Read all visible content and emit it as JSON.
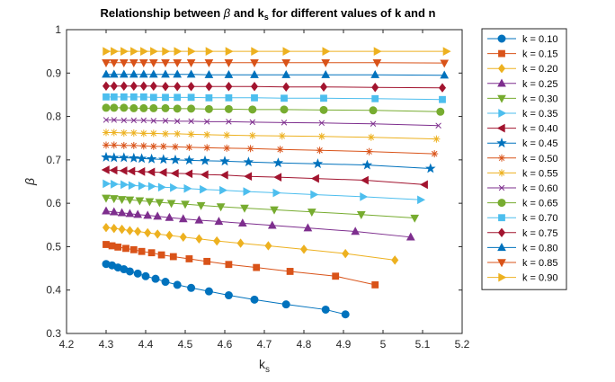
{
  "chart_data": {
    "type": "line",
    "title": "Relationship between β and k_s for different values of k and n",
    "xlabel": "k_s",
    "ylabel": "β",
    "xlim": [
      4.2,
      5.2
    ],
    "ylim": [
      0.3,
      1.0
    ],
    "xticks": [
      "4.2",
      "4.3",
      "4.4",
      "4.5",
      "4.6",
      "4.7",
      "4.8",
      "4.9",
      "5",
      "5.1",
      "5.2"
    ],
    "yticks": [
      "0.3",
      "0.4",
      "0.5",
      "0.6",
      "0.7",
      "0.8",
      "0.9",
      "1"
    ],
    "grid": false,
    "legend_position": "outside-right",
    "series": [
      {
        "name": "k = 0.10",
        "color": "#0072BD",
        "marker": "circle",
        "x": [
          4.3,
          4.315,
          4.33,
          4.345,
          4.36,
          4.38,
          4.4,
          4.425,
          4.45,
          4.48,
          4.515,
          4.56,
          4.61,
          4.675,
          4.755,
          4.855,
          4.905
        ],
        "y": [
          0.46,
          0.457,
          0.452,
          0.448,
          0.443,
          0.438,
          0.432,
          0.426,
          0.419,
          0.412,
          0.405,
          0.397,
          0.388,
          0.378,
          0.367,
          0.355,
          0.344
        ]
      },
      {
        "name": "k = 0.15",
        "color": "#D95319",
        "marker": "square",
        "x": [
          4.3,
          4.315,
          4.33,
          4.35,
          4.37,
          4.39,
          4.415,
          4.44,
          4.47,
          4.51,
          4.555,
          4.61,
          4.68,
          4.765,
          4.88,
          4.98
        ],
        "y": [
          0.505,
          0.502,
          0.499,
          0.496,
          0.493,
          0.489,
          0.486,
          0.481,
          0.477,
          0.472,
          0.466,
          0.459,
          0.452,
          0.443,
          0.432,
          0.412
        ]
      },
      {
        "name": "k = 0.20",
        "color": "#EDB120",
        "marker": "diamond",
        "x": [
          4.3,
          4.32,
          4.34,
          4.36,
          4.38,
          4.405,
          4.43,
          4.46,
          4.495,
          4.535,
          4.58,
          4.64,
          4.71,
          4.8,
          4.905,
          5.03
        ],
        "y": [
          0.544,
          0.542,
          0.54,
          0.537,
          0.535,
          0.532,
          0.529,
          0.526,
          0.522,
          0.518,
          0.513,
          0.508,
          0.502,
          0.494,
          0.484,
          0.469
        ]
      },
      {
        "name": "k = 0.25",
        "color": "#7E2F8E",
        "marker": "triangle-up",
        "x": [
          4.3,
          4.32,
          4.34,
          4.36,
          4.38,
          4.405,
          4.43,
          4.46,
          4.495,
          4.535,
          4.585,
          4.645,
          4.72,
          4.81,
          4.93,
          5.07
        ],
        "y": [
          0.582,
          0.58,
          0.578,
          0.576,
          0.574,
          0.572,
          0.57,
          0.567,
          0.564,
          0.561,
          0.558,
          0.554,
          0.549,
          0.543,
          0.535,
          0.522
        ]
      },
      {
        "name": "k = 0.30",
        "color": "#77AC30",
        "marker": "triangle-down",
        "x": [
          4.3,
          4.32,
          4.34,
          4.36,
          4.385,
          4.41,
          4.435,
          4.465,
          4.5,
          4.54,
          4.59,
          4.65,
          4.725,
          4.82,
          4.945,
          5.08
        ],
        "y": [
          0.612,
          0.611,
          0.609,
          0.608,
          0.606,
          0.604,
          0.602,
          0.6,
          0.598,
          0.595,
          0.592,
          0.589,
          0.585,
          0.58,
          0.574,
          0.566
        ]
      },
      {
        "name": "k = 0.35",
        "color": "#4DBEEE",
        "marker": "triangle-right",
        "x": [
          4.3,
          4.32,
          4.345,
          4.365,
          4.39,
          4.415,
          4.44,
          4.47,
          4.505,
          4.545,
          4.595,
          4.655,
          4.73,
          4.825,
          4.95,
          5.095
        ],
        "y": [
          0.645,
          0.644,
          0.643,
          0.641,
          0.64,
          0.639,
          0.637,
          0.636,
          0.634,
          0.632,
          0.63,
          0.627,
          0.624,
          0.62,
          0.615,
          0.608
        ]
      },
      {
        "name": "k = 0.40",
        "color": "#A2142F",
        "marker": "triangle-left",
        "x": [
          4.3,
          4.32,
          4.345,
          4.365,
          4.39,
          4.415,
          4.445,
          4.475,
          4.51,
          4.55,
          4.6,
          4.66,
          4.735,
          4.83,
          4.955,
          5.105
        ],
        "y": [
          0.677,
          0.676,
          0.675,
          0.674,
          0.673,
          0.672,
          0.671,
          0.669,
          0.668,
          0.666,
          0.665,
          0.662,
          0.66,
          0.657,
          0.653,
          0.643
        ]
      },
      {
        "name": "k = 0.45",
        "color": "#0072BD",
        "marker": "pentagram",
        "x": [
          4.3,
          4.32,
          4.345,
          4.37,
          4.39,
          4.415,
          4.445,
          4.475,
          4.51,
          4.55,
          4.6,
          4.66,
          4.735,
          4.835,
          4.96,
          5.12
        ],
        "y": [
          0.706,
          0.705,
          0.705,
          0.704,
          0.703,
          0.702,
          0.701,
          0.7,
          0.699,
          0.698,
          0.697,
          0.695,
          0.693,
          0.691,
          0.688,
          0.68
        ]
      },
      {
        "name": "k = 0.50",
        "color": "#D95319",
        "marker": "asterisk",
        "x": [
          4.3,
          4.32,
          4.345,
          4.37,
          4.395,
          4.42,
          4.445,
          4.475,
          4.51,
          4.555,
          4.605,
          4.665,
          4.74,
          4.84,
          4.965,
          5.13
        ],
        "y": [
          0.734,
          0.734,
          0.733,
          0.733,
          0.732,
          0.731,
          0.731,
          0.73,
          0.729,
          0.728,
          0.727,
          0.726,
          0.724,
          0.722,
          0.719,
          0.714
        ]
      },
      {
        "name": "k = 0.55",
        "color": "#EDB120",
        "marker": "asterisk",
        "x": [
          4.3,
          4.32,
          4.345,
          4.37,
          4.395,
          4.42,
          4.45,
          4.48,
          4.515,
          4.555,
          4.605,
          4.67,
          4.745,
          4.845,
          4.97,
          5.135
        ],
        "y": [
          0.763,
          0.763,
          0.762,
          0.762,
          0.761,
          0.761,
          0.76,
          0.76,
          0.759,
          0.758,
          0.757,
          0.756,
          0.755,
          0.754,
          0.752,
          0.748
        ]
      },
      {
        "name": "k = 0.60",
        "color": "#7E2F8E",
        "marker": "x",
        "x": [
          4.3,
          4.32,
          4.345,
          4.37,
          4.395,
          4.42,
          4.45,
          4.48,
          4.515,
          4.555,
          4.61,
          4.67,
          4.75,
          4.845,
          4.975,
          5.14
        ],
        "y": [
          0.792,
          0.792,
          0.791,
          0.791,
          0.791,
          0.79,
          0.79,
          0.789,
          0.789,
          0.788,
          0.788,
          0.787,
          0.786,
          0.785,
          0.783,
          0.779
        ]
      },
      {
        "name": "k = 0.65",
        "color": "#77AC30",
        "marker": "circle",
        "x": [
          4.3,
          4.32,
          4.345,
          4.37,
          4.395,
          4.42,
          4.45,
          4.48,
          4.515,
          4.56,
          4.61,
          4.67,
          4.75,
          4.85,
          4.975,
          5.145
        ],
        "y": [
          0.82,
          0.82,
          0.82,
          0.819,
          0.819,
          0.819,
          0.819,
          0.818,
          0.818,
          0.817,
          0.817,
          0.816,
          0.816,
          0.815,
          0.814,
          0.811
        ]
      },
      {
        "name": "k = 0.70",
        "color": "#4DBEEE",
        "marker": "square",
        "x": [
          4.3,
          4.32,
          4.345,
          4.37,
          4.395,
          4.42,
          4.45,
          4.48,
          4.515,
          4.56,
          4.61,
          4.675,
          4.75,
          4.85,
          4.98,
          5.15
        ],
        "y": [
          0.845,
          0.845,
          0.845,
          0.845,
          0.845,
          0.844,
          0.844,
          0.844,
          0.844,
          0.843,
          0.843,
          0.843,
          0.842,
          0.842,
          0.841,
          0.839
        ]
      },
      {
        "name": "k = 0.75",
        "color": "#A2142F",
        "marker": "diamond",
        "x": [
          4.3,
          4.32,
          4.345,
          4.37,
          4.395,
          4.42,
          4.45,
          4.48,
          4.515,
          4.56,
          4.61,
          4.675,
          4.755,
          4.85,
          4.98,
          5.15
        ],
        "y": [
          0.87,
          0.87,
          0.87,
          0.87,
          0.87,
          0.87,
          0.869,
          0.869,
          0.869,
          0.869,
          0.869,
          0.869,
          0.868,
          0.868,
          0.867,
          0.866
        ]
      },
      {
        "name": "k = 0.80",
        "color": "#0072BD",
        "marker": "triangle-up",
        "x": [
          4.3,
          4.32,
          4.345,
          4.37,
          4.395,
          4.42,
          4.45,
          4.48,
          4.515,
          4.56,
          4.61,
          4.675,
          4.755,
          4.855,
          4.98,
          5.155
        ],
        "y": [
          0.897,
          0.897,
          0.897,
          0.897,
          0.897,
          0.897,
          0.897,
          0.897,
          0.897,
          0.896,
          0.896,
          0.896,
          0.896,
          0.896,
          0.896,
          0.895
        ]
      },
      {
        "name": "k = 0.85",
        "color": "#D95319",
        "marker": "triangle-down",
        "x": [
          4.3,
          4.32,
          4.345,
          4.37,
          4.395,
          4.42,
          4.45,
          4.48,
          4.515,
          4.56,
          4.61,
          4.675,
          4.755,
          4.855,
          4.985,
          5.155
        ],
        "y": [
          0.924,
          0.924,
          0.924,
          0.924,
          0.924,
          0.924,
          0.924,
          0.924,
          0.924,
          0.924,
          0.924,
          0.924,
          0.924,
          0.924,
          0.924,
          0.923
        ]
      },
      {
        "name": "k = 0.90",
        "color": "#EDB120",
        "marker": "triangle-right",
        "x": [
          4.3,
          4.32,
          4.345,
          4.37,
          4.395,
          4.42,
          4.45,
          4.48,
          4.515,
          4.56,
          4.61,
          4.675,
          4.755,
          4.855,
          4.985,
          5.16
        ],
        "y": [
          0.95,
          0.95,
          0.95,
          0.95,
          0.95,
          0.95,
          0.95,
          0.95,
          0.95,
          0.95,
          0.95,
          0.95,
          0.95,
          0.95,
          0.95,
          0.95
        ]
      }
    ]
  }
}
